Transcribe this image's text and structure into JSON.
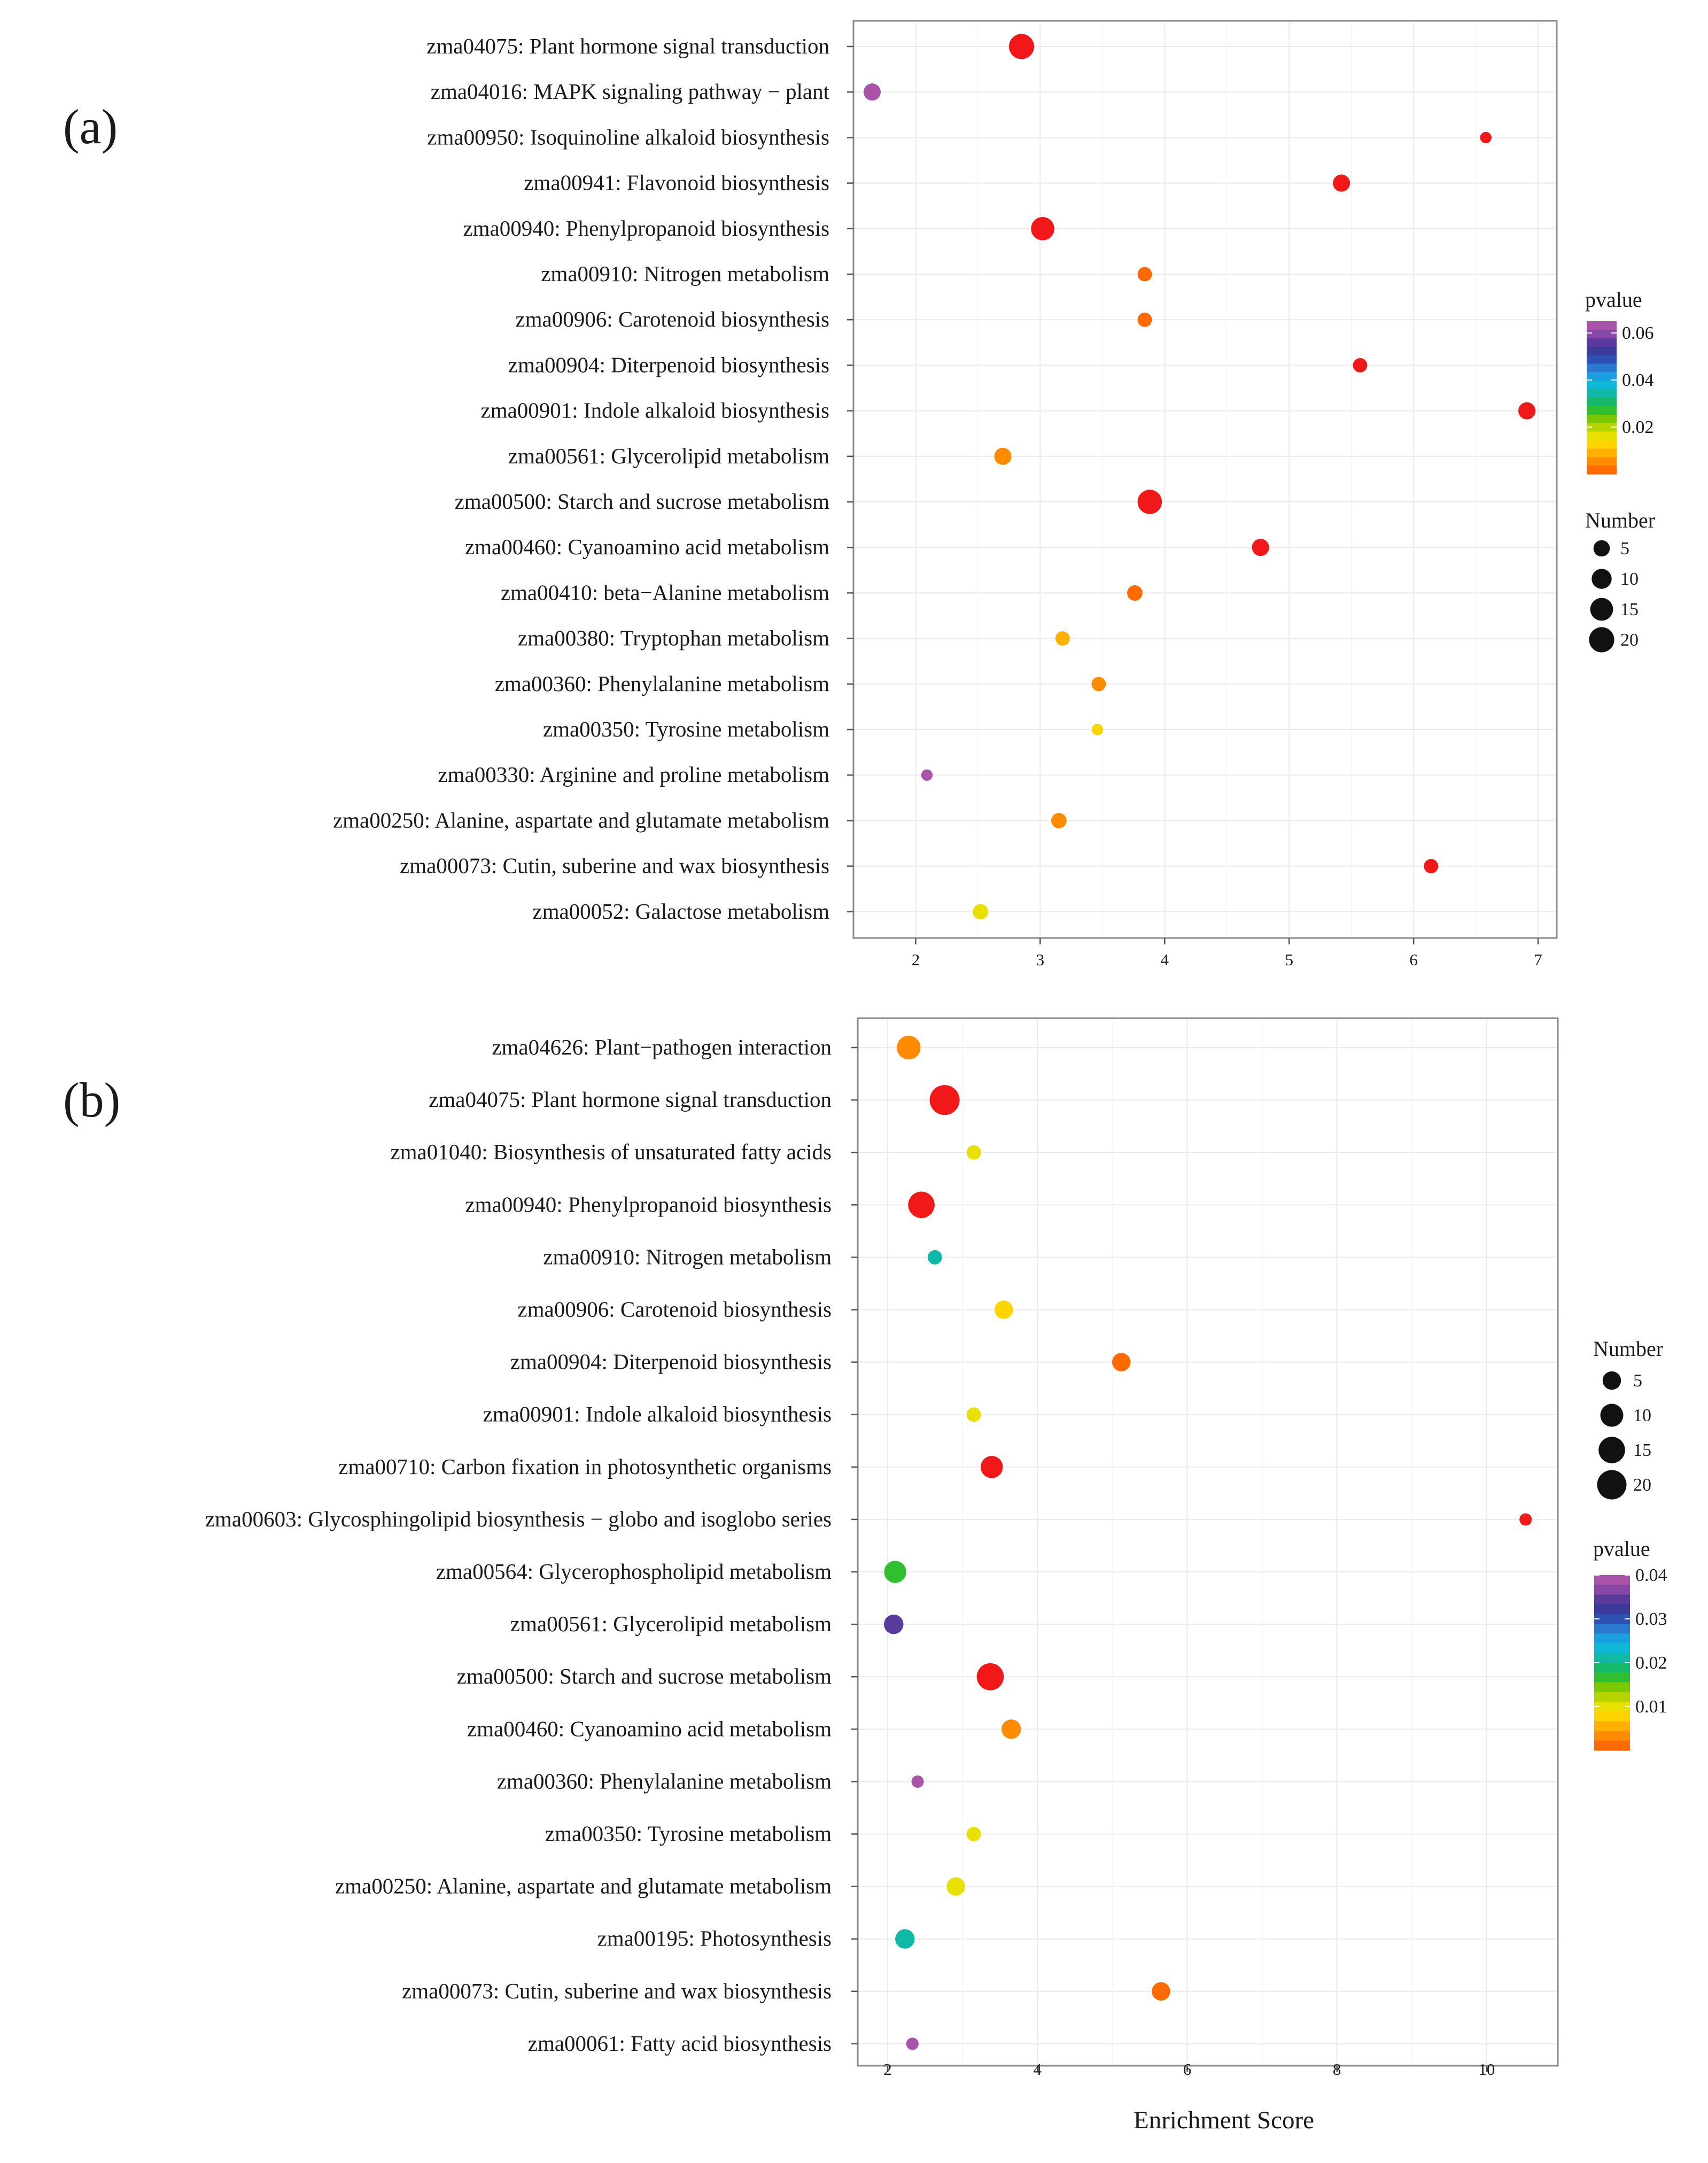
{
  "chart_data": [
    {
      "panel": "(a)",
      "type": "scatter",
      "title": "",
      "xlabel": "",
      "ylabel": "",
      "xlim": [
        1.5,
        7.15
      ],
      "x_ticks": [
        2,
        3,
        4,
        5,
        6,
        7
      ],
      "grid": true,
      "categories": [
        "zma04075: Plant hormone signal transduction",
        "zma04016: MAPK signaling pathway − plant",
        "zma00950: Isoquinoline alkaloid biosynthesis",
        "zma00941: Flavonoid biosynthesis",
        "zma00940: Phenylpropanoid biosynthesis",
        "zma00910: Nitrogen metabolism",
        "zma00906: Carotenoid biosynthesis",
        "zma00904: Diterpenoid biosynthesis",
        "zma00901: Indole alkaloid biosynthesis",
        "zma00561: Glycerolipid metabolism",
        "zma00500: Starch and sucrose metabolism",
        "zma00460: Cyanoamino acid metabolism",
        "zma00410: beta−Alanine metabolism",
        "zma00380: Tryptophan metabolism",
        "zma00360: Phenylalanine metabolism",
        "zma00350: Tyrosine metabolism",
        "zma00330: Arginine and proline metabolism",
        "zma00250: Alanine, aspartate and glutamate metabolism",
        "zma00073: Cutin, suberine and wax biosynthesis",
        "zma00052: Galactose metabolism"
      ],
      "enrichment_score": [
        2.85,
        1.65,
        6.58,
        5.42,
        3.02,
        3.84,
        3.84,
        5.57,
        6.91,
        2.7,
        3.88,
        4.77,
        3.76,
        3.18,
        3.47,
        3.46,
        2.09,
        3.15,
        6.14,
        2.52
      ],
      "number": [
        20,
        6,
        1,
        6,
        16,
        3,
        3,
        3,
        6,
        6,
        18,
        6,
        4,
        3,
        3,
        1,
        1,
        4,
        3,
        4
      ],
      "pvalue": [
        0.0001,
        0.062,
        0.001,
        0.0001,
        0.0001,
        0.002,
        0.002,
        0.0005,
        0.0003,
        0.006,
        0.0001,
        0.0005,
        0.003,
        0.01,
        0.006,
        0.012,
        0.065,
        0.004,
        0.0004,
        0.018
      ],
      "legend": {
        "pvalue_title": "pvalue",
        "pvalue_ticks": [
          "0.06",
          "0.04",
          "0.02"
        ],
        "pvalue_tick_values": [
          0.06,
          0.04,
          0.02
        ],
        "pvalue_range": [
          0,
          0.065
        ],
        "number_title": "Number",
        "number_entries": [
          "5",
          "10",
          "15",
          "20"
        ],
        "number_values": [
          5,
          10,
          15,
          20
        ],
        "order": [
          "pvalue",
          "number"
        ]
      }
    },
    {
      "panel": "(b)",
      "type": "scatter",
      "title": "",
      "xlabel": "Enrichment Score",
      "ylabel": "",
      "xlim": [
        1.6,
        10.95
      ],
      "x_ticks": [
        2,
        4,
        6,
        8,
        10
      ],
      "grid": true,
      "categories": [
        "zma04626: Plant−pathogen interaction",
        "zma04075: Plant hormone signal transduction",
        "zma01040: Biosynthesis of unsaturated fatty acids",
        "zma00940: Phenylpropanoid biosynthesis",
        "zma00910: Nitrogen metabolism",
        "zma00906: Carotenoid biosynthesis",
        "zma00904: Diterpenoid biosynthesis",
        "zma00901: Indole alkaloid biosynthesis",
        "zma00710: Carbon fixation in photosynthetic organisms",
        "zma00603: Glycosphingolipid biosynthesis − globo and isoglobo series",
        "zma00564: Glycerophospholipid metabolism",
        "zma00561: Glycerolipid metabolism",
        "zma00500: Starch and sucrose metabolism",
        "zma00460: Cyanoamino acid metabolism",
        "zma00360: Phenylalanine metabolism",
        "zma00350: Tyrosine metabolism",
        "zma00250: Alanine, aspartate and glutamate metabolism",
        "zma00195: Photosynthesis",
        "zma00073: Cutin, suberine and wax biosynthesis",
        "zma00061: Fatty acid biosynthesis"
      ],
      "enrichment_score": [
        2.28,
        2.76,
        3.15,
        2.45,
        2.63,
        3.55,
        5.12,
        3.15,
        3.39,
        10.52,
        2.1,
        2.08,
        3.37,
        3.65,
        2.4,
        3.15,
        2.91,
        2.23,
        5.65,
        2.33
      ],
      "number": [
        11,
        21,
        2,
        15,
        2,
        5,
        5,
        2,
        9,
        1,
        9,
        6,
        16,
        6,
        1,
        2,
        5,
        6,
        5,
        1
      ],
      "pvalue": [
        0.004,
        0.0001,
        0.011,
        0.0007,
        0.022,
        0.007,
        0.002,
        0.011,
        0.0012,
        0.0012,
        0.016,
        0.034,
        0.0012,
        0.004,
        0.039,
        0.011,
        0.0095,
        0.022,
        0.0018,
        0.039
      ],
      "legend": {
        "number_title": "Number",
        "number_entries": [
          "5",
          "10",
          "15",
          "20"
        ],
        "number_values": [
          5,
          10,
          15,
          20
        ],
        "pvalue_title": "pvalue",
        "pvalue_ticks": [
          "0.04",
          "0.03",
          "0.02",
          "0.01"
        ],
        "pvalue_tick_values": [
          0.04,
          0.03,
          0.02,
          0.01
        ],
        "pvalue_range": [
          0,
          0.04
        ],
        "order": [
          "number",
          "pvalue"
        ]
      }
    }
  ],
  "colors": {
    "rainbow": [
      "#ff6a00",
      "#ff8c00",
      "#ffb000",
      "#ffd400",
      "#e8e000",
      "#b8d400",
      "#7cc800",
      "#2fbf2f",
      "#16b86a",
      "#10b8a8",
      "#10b8d8",
      "#1aa0e0",
      "#2a78d0",
      "#2d50b4",
      "#3a3a9a",
      "#5b3a9e",
      "#8848a8",
      "#a854a8"
    ],
    "dot_low_p": "#f01818",
    "grid": "#ebebeb",
    "frame": "#8a8a8a"
  }
}
